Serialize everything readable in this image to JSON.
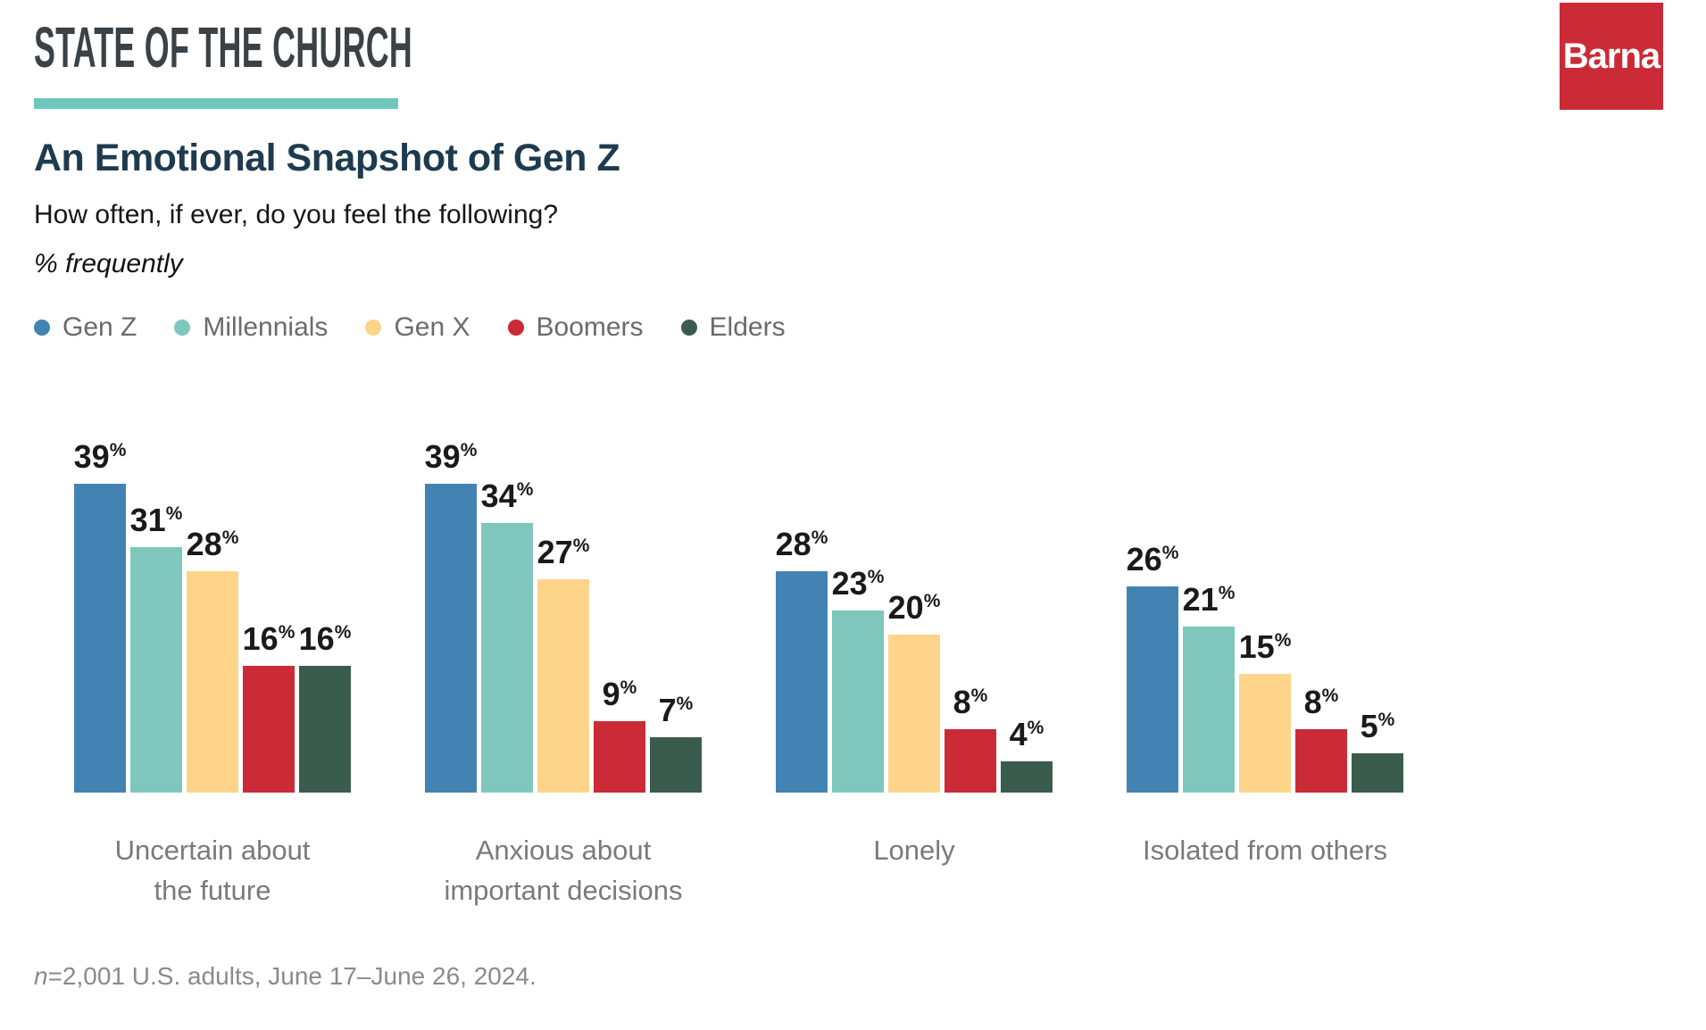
{
  "header": {
    "kicker": "STATE OF THE CHURCH",
    "brand": "Barna"
  },
  "titles": {
    "title": "An Emotional Snapshot of Gen Z",
    "subtitle": "How often, if ever, do you feel the following?",
    "unit_note": "% frequently"
  },
  "footnote": {
    "italic_prefix": "n",
    "rest": "=2,001 U.S. adults, June 17–June 26, 2024."
  },
  "colors": {
    "accent_teal": "#6fc6bb",
    "brand_red": "#cb2b36",
    "title_navy": "#1d3b4e",
    "kicker_dark": "#3a4147",
    "category_gray": "#7a7a7a",
    "legend_gray": "#6b6b6b"
  },
  "chart_data": {
    "type": "bar",
    "title": "An Emotional Snapshot of Gen Z",
    "subtitle": "How often, if ever, do you feel the following?",
    "unit": "% frequently",
    "value_suffix": "%",
    "ylim": [
      0,
      40
    ],
    "grid": false,
    "legend_position": "top",
    "value_labels": true,
    "categories": [
      "Uncertain about the future",
      "Anxious about important decisions",
      "Lonely",
      "Isolated from others"
    ],
    "category_label_lines": [
      [
        "Uncertain about",
        "the future"
      ],
      [
        "Anxious about",
        "important decisions"
      ],
      [
        "Lonely"
      ],
      [
        "Isolated from others"
      ]
    ],
    "series": [
      {
        "name": "Gen Z",
        "color": "#4383b3",
        "values": [
          39,
          39,
          28,
          26
        ]
      },
      {
        "name": "Millennials",
        "color": "#7fc7bd",
        "values": [
          31,
          34,
          23,
          21
        ]
      },
      {
        "name": "Gen X",
        "color": "#fdd489",
        "values": [
          28,
          27,
          20,
          15
        ]
      },
      {
        "name": "Boomers",
        "color": "#cb2b36",
        "values": [
          16,
          9,
          8,
          8
        ]
      },
      {
        "name": "Elders",
        "color": "#3a5c4d",
        "values": [
          16,
          7,
          4,
          5
        ]
      }
    ]
  }
}
